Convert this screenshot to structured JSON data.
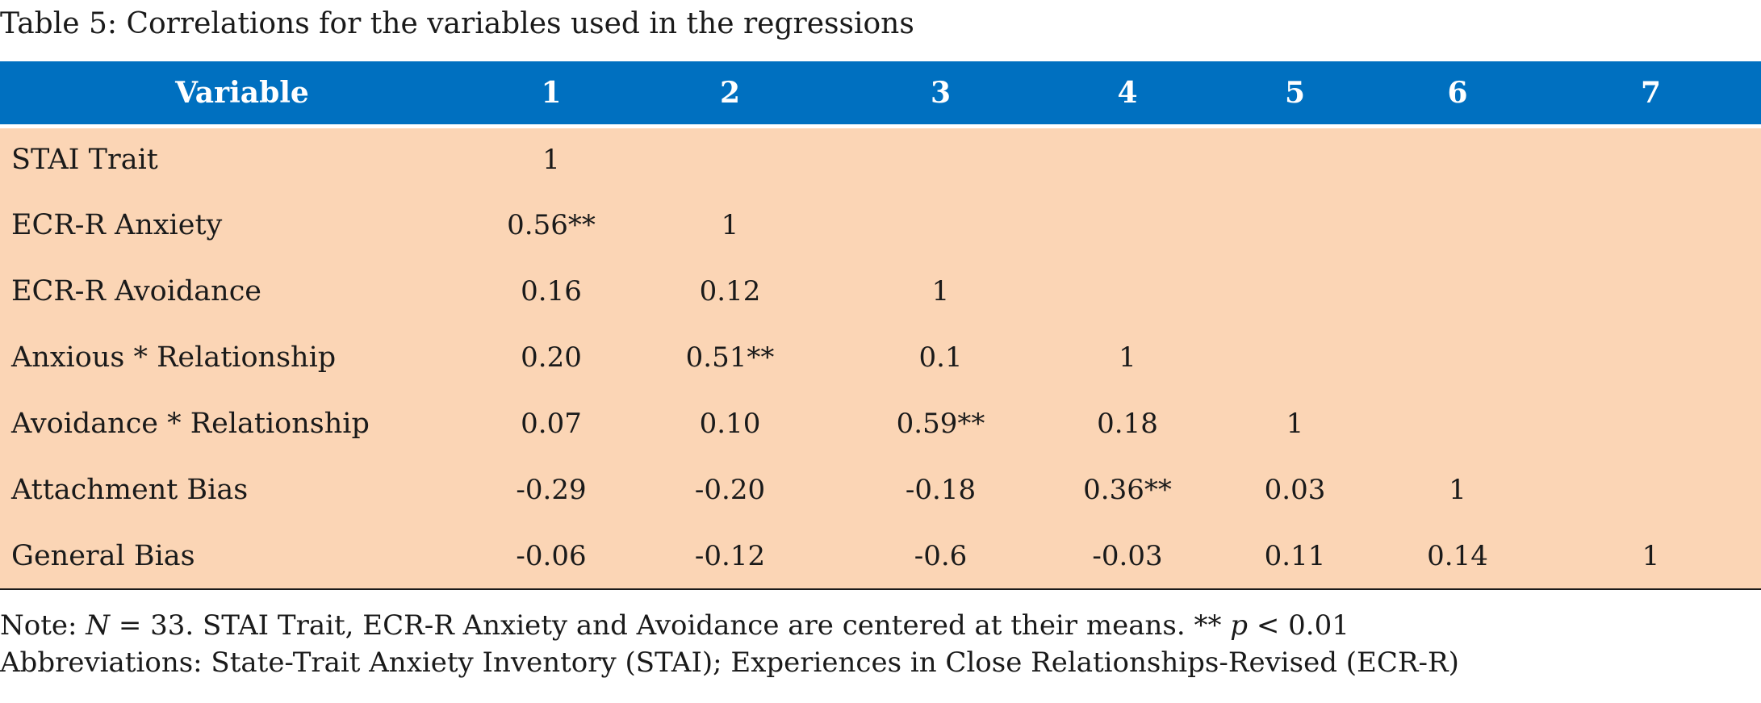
{
  "caption": "Table 5: Correlations for the variables used in the regressions",
  "table": {
    "headers": [
      "Variable",
      "1",
      "2",
      "3",
      "4",
      "5",
      "6",
      "7"
    ],
    "rows": [
      {
        "variable": "STAI Trait",
        "cells": [
          "1",
          "",
          "",
          "",
          "",
          "",
          ""
        ]
      },
      {
        "variable": "ECR-R Anxiety",
        "cells": [
          "0.56**",
          "1",
          "",
          "",
          "",
          "",
          ""
        ]
      },
      {
        "variable": "ECR-R Avoidance",
        "cells": [
          "0.16",
          "0.12",
          "1",
          "",
          "",
          "",
          ""
        ]
      },
      {
        "variable": "Anxious * Relationship",
        "cells": [
          "0.20",
          "0.51**",
          "0.1",
          "1",
          "",
          "",
          ""
        ]
      },
      {
        "variable": "Avoidance * Relationship",
        "cells": [
          "0.07",
          "0.10",
          "0.59**",
          "0.18",
          "1",
          "",
          ""
        ]
      },
      {
        "variable": "Attachment Bias",
        "cells": [
          "-0.29",
          "-0.20",
          "-0.18",
          "0.36**",
          "0.03",
          "1",
          ""
        ]
      },
      {
        "variable": "General Bias",
        "cells": [
          "-0.06",
          "-0.12",
          "-0.6",
          "-0.03",
          "0.11",
          "0.14",
          "1"
        ]
      }
    ]
  },
  "notes": {
    "note_prefix": "Note: ",
    "note_n": "N",
    "note_mid": " = 33. STAI Trait, ECR-R Anxiety and Avoidance are centered at their means. ** ",
    "note_p": "p",
    "note_end": " < 0.01",
    "abbreviations": "Abbreviations: State-Trait Anxiety Inventory (STAI); Experiences in Close Relationships-Revised (ECR-R)"
  },
  "colors": {
    "header_bg": "#0070c0",
    "body_bg": "#fbd5b5",
    "header_text": "#ffffff"
  }
}
